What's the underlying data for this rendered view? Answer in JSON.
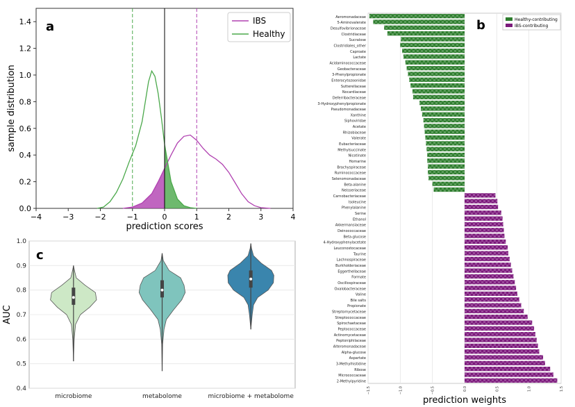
{
  "panels": [
    {
      "label": "a",
      "chart_data": {
        "type": "area",
        "xlabel": "prediction scores",
        "ylabel": "sample distribution",
        "xlim": [
          -4,
          4
        ],
        "ylim": [
          0,
          1.5
        ],
        "xticks": [
          "−4",
          "−3",
          "−2",
          "−1",
          "0",
          "1",
          "2",
          "3",
          "4"
        ],
        "yticks": [
          "0.0",
          "0.2",
          "0.4",
          "0.6",
          "0.8",
          "1.0",
          "1.2",
          "1.4"
        ],
        "series": [
          {
            "name": "IBS",
            "color": "#b040b0",
            "x": [
              -1.3,
              -1.0,
              -0.7,
              -0.4,
              -0.2,
              0.0,
              0.2,
              0.4,
              0.6,
              0.8,
              1.0,
              1.2,
              1.4,
              1.6,
              1.8,
              2.0,
              2.2,
              2.4,
              2.6,
              2.8,
              3.0,
              3.3
            ],
            "y": [
              0.0,
              0.01,
              0.04,
              0.11,
              0.2,
              0.3,
              0.4,
              0.49,
              0.54,
              0.55,
              0.51,
              0.45,
              0.4,
              0.37,
              0.33,
              0.27,
              0.19,
              0.11,
              0.05,
              0.02,
              0.005,
              0.0
            ]
          },
          {
            "name": "Healthy",
            "color": "#4aa84a",
            "x": [
              -2.1,
              -1.9,
              -1.7,
              -1.5,
              -1.3,
              -1.1,
              -0.9,
              -0.7,
              -0.5,
              -0.4,
              -0.3,
              -0.2,
              -0.1,
              0.0,
              0.2,
              0.4,
              0.6,
              0.8,
              1.0
            ],
            "y": [
              0.0,
              0.01,
              0.05,
              0.12,
              0.22,
              0.35,
              0.47,
              0.65,
              0.95,
              1.03,
              0.99,
              0.86,
              0.68,
              0.48,
              0.2,
              0.07,
              0.02,
              0.005,
              0.0
            ]
          }
        ],
        "vlines": [
          {
            "x": -1.0,
            "color": "#4aa84a",
            "style": "dashed"
          },
          {
            "x": 0.0,
            "color": "#000000",
            "style": "solid"
          },
          {
            "x": 1.0,
            "color": "#b040b0",
            "style": "dashed"
          }
        ],
        "legend_position": "top-right"
      }
    },
    {
      "label": "b",
      "chart_data": {
        "type": "bar",
        "orientation": "horizontal",
        "xlabel": "prediction weights",
        "xlim": [
          -1.5,
          1.5
        ],
        "xticks": [
          "−1.5",
          "−1.0",
          "−0.5",
          "0.0",
          "0.5",
          "1.0",
          "1.5"
        ],
        "legend": [
          {
            "name": "Healthy-contributing",
            "color": "#2e7d2e"
          },
          {
            "name": "IBS-contributing",
            "color": "#7b1a7b"
          }
        ],
        "legend_position": "top-right",
        "categories": [
          "Aeromonadaceae",
          "5-Aminovalerate",
          "Desulfovibrionaceae",
          "Clostridiaceae",
          "Sucralose",
          "Clostridiales_other",
          "Caproate",
          "Lactate",
          "Acidaminococcaceae",
          "Geobacteraceae",
          "3-Phenylpropionate",
          "Enterocytozoonidae",
          "Sutterellaceae",
          "Nocardiaceae",
          "Deferribacteraceae",
          "3-Hydroxyphenylpropionate",
          "Pseudomonadaceae",
          "Xanthine",
          "Siphoviridae",
          "Acetate",
          "Rhizobiaceae",
          "Valerate",
          "Eubacteriaceae",
          "Methylsuccinate",
          "Nicotinate",
          "Homarine",
          "Brachyspiraceae",
          "Ruminococcaceae",
          "Selenomonadaceae",
          "Beta-alanine",
          "Neisseriaceae",
          "Carnobacteriaceae",
          "Isoleucine",
          "Phenylalanine",
          "Serine",
          "Ethanol",
          "Akkermansiaceae",
          "Deinococcaceae",
          "Beta-glucose",
          "4-Hydroxyphenylacetate",
          "Leuconostocaceae",
          "Taurine",
          "Lachnospiraceae",
          "Burkholderiaceae",
          "Eggerthellaceae",
          "Formate",
          "Oscillospiraceae",
          "Oxalobacteraceae",
          "Valine",
          "Bile salts",
          "Propionate",
          "Streptomycetaceae",
          "Streptococcaceae",
          "Spirochaetaceae",
          "Peptococcaceae",
          "Actinomycetaceae",
          "Peptoniphilaceae",
          "Alteromonadaceae",
          "Alpha-glucose",
          "Aspartate",
          "3-Methylhistidine",
          "Ribose",
          "Micrococcaceae",
          "2-Methylpyridine"
        ],
        "values": [
          -1.48,
          -1.42,
          -1.25,
          -1.2,
          -0.99,
          -1.0,
          -0.97,
          -0.95,
          -0.92,
          -0.9,
          -0.88,
          -0.86,
          -0.84,
          -0.81,
          -0.8,
          -0.7,
          -0.68,
          -0.66,
          -0.64,
          -0.63,
          -0.62,
          -0.61,
          -0.6,
          -0.59,
          -0.58,
          -0.58,
          -0.57,
          -0.57,
          -0.56,
          -0.5,
          -0.48,
          0.48,
          0.51,
          0.52,
          0.57,
          0.59,
          0.6,
          0.61,
          0.62,
          0.64,
          0.67,
          0.68,
          0.7,
          0.72,
          0.74,
          0.76,
          0.78,
          0.8,
          0.82,
          0.85,
          0.88,
          0.92,
          0.98,
          1.05,
          1.08,
          1.1,
          1.12,
          1.14,
          1.16,
          1.22,
          1.25,
          1.33,
          1.38,
          1.44
        ]
      }
    },
    {
      "label": "c",
      "chart_data": {
        "type": "violin",
        "ylabel": "AUC",
        "ylim": [
          0.4,
          1.0
        ],
        "yticks": [
          "0.4",
          "0.5",
          "0.6",
          "0.7",
          "0.8",
          "0.9",
          "1.0"
        ],
        "categories": [
          "microbiome",
          "metabolome",
          "microbiome + metabolome"
        ],
        "colors": [
          "#cde8c6",
          "#7fc4bd",
          "#3a85ad"
        ],
        "series": [
          {
            "min": 0.51,
            "q1": 0.74,
            "median": 0.77,
            "q3": 0.81,
            "max": 0.9,
            "density_y": [
              0.51,
              0.6,
              0.66,
              0.7,
              0.73,
              0.76,
              0.79,
              0.82,
              0.85,
              0.88,
              0.9
            ],
            "density_w": [
              0.0,
              0.03,
              0.09,
              0.3,
              0.7,
              1.0,
              0.95,
              0.5,
              0.12,
              0.04,
              0.0
            ]
          },
          {
            "min": 0.47,
            "q1": 0.77,
            "median": 0.8,
            "q3": 0.84,
            "max": 0.95,
            "density_y": [
              0.47,
              0.58,
              0.64,
              0.68,
              0.72,
              0.76,
              0.79,
              0.82,
              0.85,
              0.88,
              0.92,
              0.95
            ],
            "density_w": [
              0.0,
              0.02,
              0.08,
              0.18,
              0.5,
              0.85,
              1.0,
              0.95,
              0.8,
              0.3,
              0.05,
              0.0
            ]
          },
          {
            "min": 0.64,
            "q1": 0.81,
            "median": 0.845,
            "q3": 0.88,
            "max": 0.99,
            "density_y": [
              0.64,
              0.7,
              0.74,
              0.77,
              0.8,
              0.83,
              0.86,
              0.88,
              0.91,
              0.94,
              0.97,
              0.99
            ],
            "density_w": [
              0.0,
              0.06,
              0.12,
              0.3,
              0.75,
              0.98,
              1.0,
              0.9,
              0.45,
              0.12,
              0.03,
              0.0
            ]
          }
        ]
      }
    }
  ]
}
